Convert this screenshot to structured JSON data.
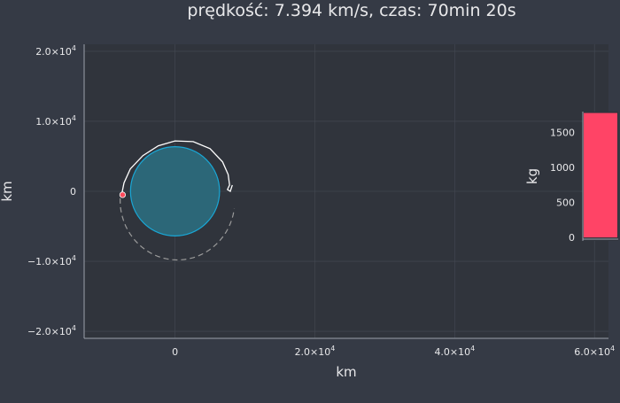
{
  "title": "prędkość: 7.394 km/s, czas: 70min 20s",
  "colors": {
    "background": "#353a45",
    "plot_background": "#30343c",
    "axis": "#9aa0aa",
    "grid": "#454a54",
    "planet_stroke": "#19a7d6",
    "planet_fill": "#2c6778",
    "trajectory": "#ffffff",
    "future_orbit": "#9a9a9a",
    "spacecraft": "#ff4a5c",
    "fuel_bar": "#ff4466"
  },
  "chart_data": [
    {
      "type": "scatter",
      "subtype": "orbit-trajectory",
      "xlabel": "km",
      "ylabel": "km",
      "xlim": [
        -13000,
        62000
      ],
      "ylim": [
        -21000,
        21000
      ],
      "grid": true,
      "x_ticks": [
        {
          "value": 0,
          "base": "0",
          "exp": ""
        },
        {
          "value": 20000,
          "base": "2.0×10",
          "exp": "4"
        },
        {
          "value": 40000,
          "base": "4.0×10",
          "exp": "4"
        },
        {
          "value": 60000,
          "base": "6.0×10",
          "exp": "4"
        }
      ],
      "y_ticks": [
        {
          "value": 20000,
          "base": "2.0×10",
          "exp": "4"
        },
        {
          "value": 10000,
          "base": "1.0×10",
          "exp": "4"
        },
        {
          "value": 0,
          "base": "0",
          "exp": ""
        },
        {
          "value": -10000,
          "base": "−1.0×10",
          "exp": "4"
        },
        {
          "value": -20000,
          "base": "−2.0×10",
          "exp": "4"
        }
      ],
      "planet": {
        "cx": 0,
        "cy": 0,
        "r": 6371
      },
      "future_orbit": {
        "cx": 350,
        "cy": -1300,
        "rx": 8200,
        "ry": 8500,
        "start_deg": 178,
        "end_deg": 354
      },
      "trajectory": [
        [
          -7600,
          -300
        ],
        [
          -7300,
          1200
        ],
        [
          -6400,
          3200
        ],
        [
          -4600,
          5100
        ],
        [
          -2400,
          6500
        ],
        [
          0,
          7200
        ],
        [
          2600,
          7100
        ],
        [
          5000,
          6100
        ],
        [
          6800,
          4200
        ],
        [
          7600,
          2400
        ],
        [
          7800,
          900
        ],
        [
          7500,
          250
        ],
        [
          7900,
          0
        ],
        [
          8200,
          900
        ]
      ],
      "spacecraft": {
        "x": -7500,
        "y": -500
      }
    },
    {
      "type": "bar",
      "ylabel": "kg",
      "ylim": [
        -50,
        1800
      ],
      "y_ticks": [
        0,
        500,
        1000,
        1500
      ],
      "values": [
        1780
      ]
    }
  ]
}
